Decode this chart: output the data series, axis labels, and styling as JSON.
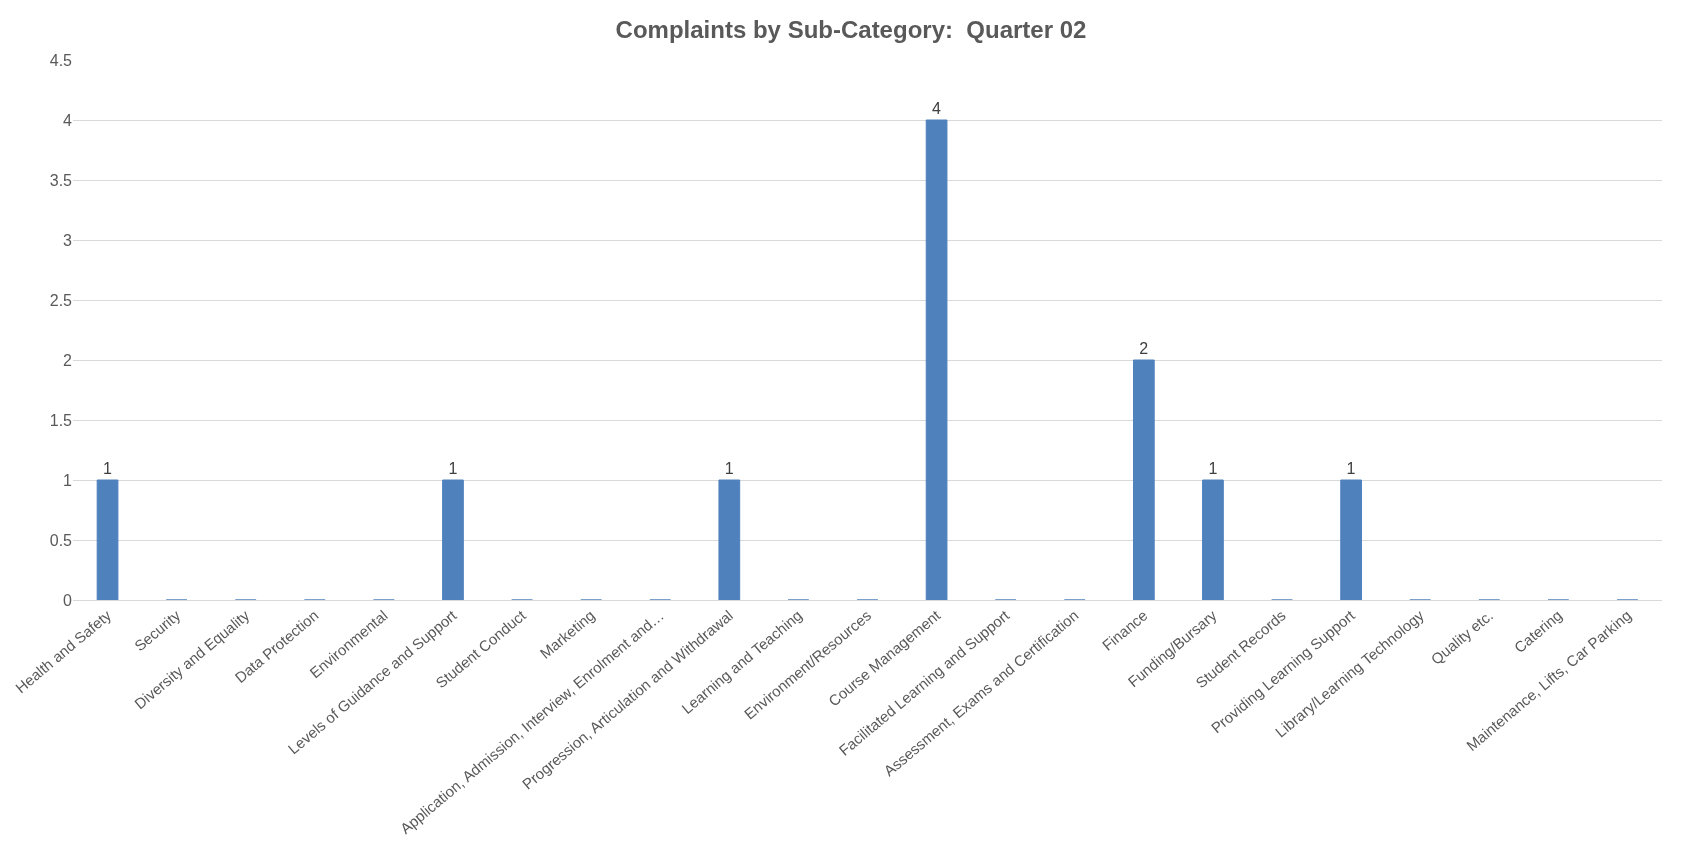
{
  "chart_data": {
    "type": "bar",
    "title": "Complaints by Sub-Category:  Quarter 02",
    "categories": [
      "Health and Safety",
      "Security",
      "Diversity and Equality",
      "Data Protection",
      "Environmental",
      "Levels of Guidance and Support",
      "Student Conduct",
      "Marketing",
      "Application, Admission, Interview, Enrolment and…",
      "Progression, Articulation and Withdrawal",
      "Learning and Teaching",
      "Environment/Resources",
      "Course Management",
      "Facilitated Learning and Support",
      "Assessment, Exams and Certification",
      "Finance",
      "Funding/Bursary",
      "Student Records",
      "Providing Learning Support",
      "Library/Learning Technology",
      "Quality etc.",
      "Catering",
      "Maintenance, Lifts, Car Parking"
    ],
    "values": [
      1,
      0,
      0,
      0,
      0,
      1,
      0,
      0,
      0,
      1,
      0,
      0,
      4,
      0,
      0,
      2,
      1,
      0,
      1,
      0,
      0,
      0,
      0
    ],
    "value_labels": [
      "1",
      null,
      null,
      null,
      null,
      "1",
      null,
      null,
      null,
      "1",
      null,
      null,
      "4",
      null,
      null,
      "2",
      "1",
      null,
      "1",
      null,
      null,
      null,
      null
    ],
    "color": "#4f81bd",
    "ylim": [
      0,
      4.5
    ],
    "yticks": [
      0,
      0.5,
      1,
      1.5,
      2,
      2.5,
      3,
      3.5,
      4,
      4.5
    ],
    "grid": "y"
  }
}
